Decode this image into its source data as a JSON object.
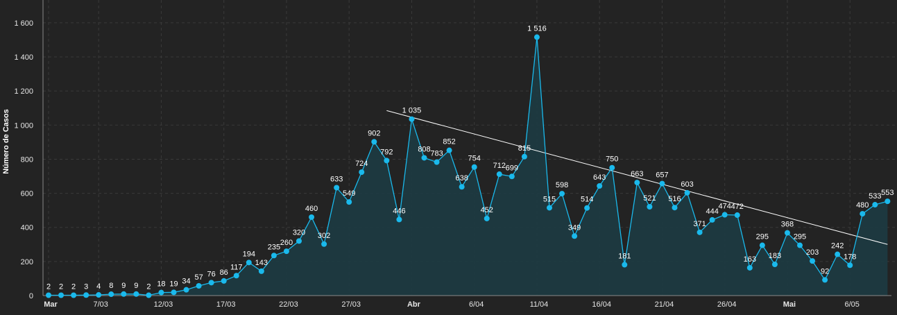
{
  "chart_data": {
    "type": "line",
    "ylabel": "Número de Casos",
    "ylim": [
      0,
      1700
    ],
    "yticks": [
      0,
      200,
      400,
      600,
      800,
      1000,
      1200,
      1400,
      1600
    ],
    "ytick_labels": [
      "0",
      "200",
      "400",
      "600",
      "800",
      "1 000",
      "1 200",
      "1 400",
      "1 600"
    ],
    "x_start_date": "2020-03-03",
    "xticks": [
      {
        "date": "2020-03-03",
        "label": "Mar",
        "bold": true
      },
      {
        "date": "2020-03-07",
        "label": "7/03",
        "bold": false
      },
      {
        "date": "2020-03-12",
        "label": "12/03",
        "bold": false
      },
      {
        "date": "2020-03-17",
        "label": "17/03",
        "bold": false
      },
      {
        "date": "2020-03-22",
        "label": "22/03",
        "bold": false
      },
      {
        "date": "2020-03-27",
        "label": "27/03",
        "bold": false
      },
      {
        "date": "2020-04-01",
        "label": "Abr",
        "bold": true
      },
      {
        "date": "2020-04-06",
        "label": "6/04",
        "bold": false
      },
      {
        "date": "2020-04-11",
        "label": "11/04",
        "bold": false
      },
      {
        "date": "2020-04-16",
        "label": "16/04",
        "bold": false
      },
      {
        "date": "2020-04-21",
        "label": "21/04",
        "bold": false
      },
      {
        "date": "2020-04-26",
        "label": "26/04",
        "bold": false
      },
      {
        "date": "2020-05-01",
        "label": "Mai",
        "bold": true
      },
      {
        "date": "2020-05-06",
        "label": "6/05",
        "bold": false
      }
    ],
    "series": [
      {
        "values": [
          2,
          2,
          2,
          3,
          4,
          8,
          9,
          9,
          2,
          18,
          19,
          34,
          57,
          76,
          86,
          117,
          194,
          143,
          235,
          260,
          320,
          460,
          302,
          633,
          549,
          724,
          902,
          792,
          446,
          1035,
          808,
          783,
          852,
          638,
          754,
          452,
          712,
          699,
          815,
          1516,
          515,
          598,
          349,
          514,
          643,
          750,
          181,
          663,
          521,
          657,
          516,
          603,
          371,
          444,
          474,
          472,
          163,
          295,
          183,
          368,
          295,
          203,
          92,
          242,
          178,
          480,
          533,
          553
        ],
        "labels": [
          "2",
          "2",
          "2",
          "3",
          "4",
          "8",
          "9",
          "9",
          "2",
          "18",
          "19",
          "34",
          "57",
          "76",
          "86",
          "117",
          "194",
          "143",
          "235",
          "260",
          "320",
          "460",
          "302",
          "633",
          "549",
          "724",
          "902",
          "792",
          "446",
          "1 035",
          "808",
          "783",
          "852",
          "638",
          "754",
          "452",
          "712",
          "699",
          "815",
          "1 516",
          "515",
          "598",
          "349",
          "514",
          "643",
          "750",
          "181",
          "663",
          "521",
          "657",
          "516",
          "603",
          "371",
          "444",
          "474",
          "472",
          "163",
          "295",
          "183",
          "368",
          "295",
          "203",
          "92",
          "242",
          "178",
          "480",
          "533",
          "553"
        ],
        "color": "#1ab9ec"
      }
    ],
    "trendline": {
      "x_start": "2020-03-30",
      "y_start": 1085,
      "x_end": "2020-05-09",
      "y_end": 300,
      "color": "#ffffff"
    },
    "grid": true,
    "colors": {
      "background": "#232323",
      "line": "#1ab9ec",
      "area": "#1d3b42",
      "text": "#e6e6e6"
    }
  }
}
